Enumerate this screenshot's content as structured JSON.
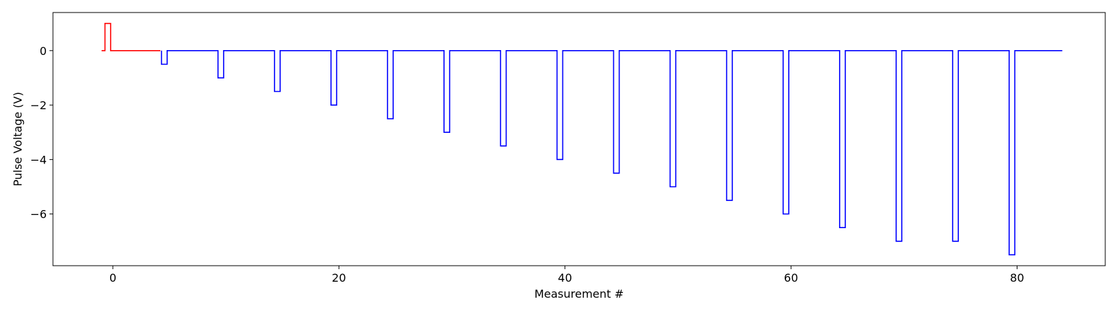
{
  "chart_data": {
    "type": "line",
    "title": "",
    "xlabel": "Measurement #",
    "ylabel": "Pulse Voltage (V)",
    "xlim": [
      -5.3,
      87.8
    ],
    "ylim": [
      -7.9,
      1.4
    ],
    "x_ticks": [
      0,
      20,
      40,
      60,
      80
    ],
    "y_ticks": [
      0,
      -2,
      -4,
      -6
    ],
    "y_tick_labels": [
      "0",
      "−2",
      "−4",
      "−6"
    ],
    "grid": false,
    "legend": "none",
    "series": [
      {
        "color": "#ff0000",
        "step": true,
        "points": [
          [
            -1,
            0
          ],
          [
            -0.7,
            0
          ],
          [
            -0.7,
            1
          ],
          [
            -0.2,
            1
          ],
          [
            -0.2,
            0
          ],
          [
            4.2,
            0
          ]
        ]
      },
      {
        "color": "#0000ff",
        "step": true,
        "pulse_width": 0.5,
        "baseline_end": 84,
        "pulses": [
          {
            "x": 4.3,
            "v": -0.5
          },
          {
            "x": 9.3,
            "v": -1.0
          },
          {
            "x": 14.3,
            "v": -1.5
          },
          {
            "x": 19.3,
            "v": -2.0
          },
          {
            "x": 24.3,
            "v": -2.5
          },
          {
            "x": 29.3,
            "v": -3.0
          },
          {
            "x": 34.3,
            "v": -3.5
          },
          {
            "x": 39.3,
            "v": -4.0
          },
          {
            "x": 44.3,
            "v": -4.5
          },
          {
            "x": 49.3,
            "v": -5.0
          },
          {
            "x": 54.3,
            "v": -5.5
          },
          {
            "x": 59.3,
            "v": -6.0
          },
          {
            "x": 64.3,
            "v": -6.5
          },
          {
            "x": 69.3,
            "v": -7.0
          },
          {
            "x": 74.3,
            "v": -7.0
          },
          {
            "x": 79.3,
            "v": -7.5
          }
        ]
      }
    ]
  }
}
